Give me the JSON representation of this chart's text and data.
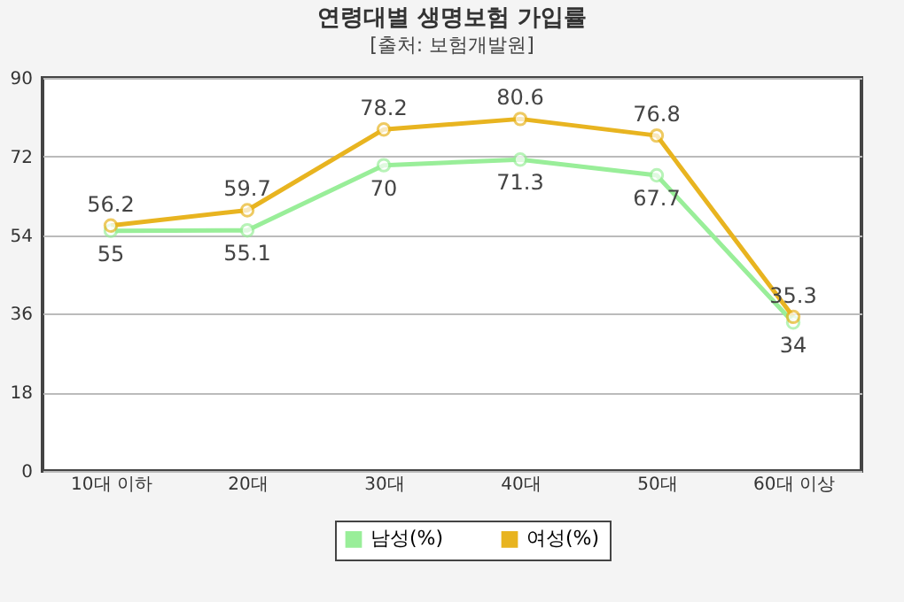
{
  "chart_data": {
    "type": "line",
    "title": "연령대별 생명보험 가입률",
    "subtitle": "[출처: 보험개발원]",
    "categories": [
      "10대 이하",
      "20대",
      "30대",
      "40대",
      "50대",
      "60대 이상"
    ],
    "series": [
      {
        "name": "남성(%)",
        "color": "#99ee99",
        "values": [
          55,
          55.1,
          70,
          71.3,
          67.7,
          34
        ]
      },
      {
        "name": "여성(%)",
        "color": "#e8b420",
        "values": [
          56.2,
          59.7,
          78.2,
          80.6,
          76.8,
          35.3
        ]
      }
    ],
    "ylim": [
      0,
      90
    ],
    "yticks": [
      0,
      18,
      36,
      54,
      72,
      90
    ],
    "grid": "y",
    "legend": "bottom",
    "marker": "circle",
    "data_labels": true
  }
}
